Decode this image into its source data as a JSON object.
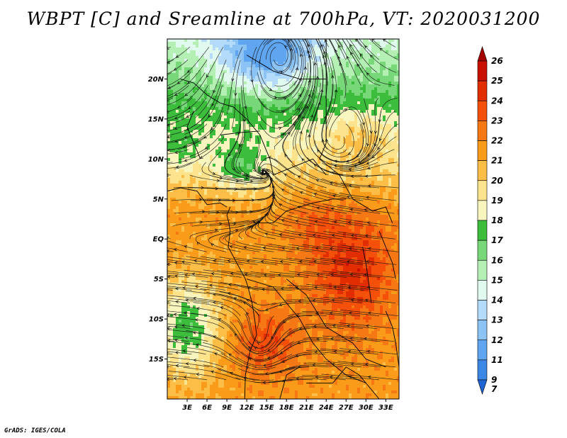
{
  "title": "WBPT [C] and Sreamline at 700hPa, VT: 2020031200",
  "credit": "GrADS: IGES/COLA",
  "map": {
    "lon_range": [
      0,
      35
    ],
    "lat_range": [
      -20,
      25
    ],
    "lat_ticks": [
      {
        "value": 20,
        "label": "20N"
      },
      {
        "value": 15,
        "label": "15N"
      },
      {
        "value": 10,
        "label": "10N"
      },
      {
        "value": 5,
        "label": "5N"
      },
      {
        "value": 0,
        "label": "EQ"
      },
      {
        "value": -5,
        "label": "5S"
      },
      {
        "value": -10,
        "label": "10S"
      },
      {
        "value": -15,
        "label": "15S"
      }
    ],
    "lon_ticks": [
      {
        "value": 3,
        "label": "3E"
      },
      {
        "value": 6,
        "label": "6E"
      },
      {
        "value": 9,
        "label": "9E"
      },
      {
        "value": 12,
        "label": "12E"
      },
      {
        "value": 15,
        "label": "15E"
      },
      {
        "value": 18,
        "label": "18E"
      },
      {
        "value": 21,
        "label": "21E"
      },
      {
        "value": 24,
        "label": "24E"
      },
      {
        "value": 27,
        "label": "27E"
      },
      {
        "value": 30,
        "label": "30E"
      },
      {
        "value": 33,
        "label": "33E"
      }
    ]
  },
  "colorbar": {
    "levels": [
      {
        "label": "26",
        "color": "#a50000"
      },
      {
        "label": "25",
        "color": "#c80f00"
      },
      {
        "label": "24",
        "color": "#e22d00"
      },
      {
        "label": "23",
        "color": "#f5500a"
      },
      {
        "label": "22",
        "color": "#f57814"
      },
      {
        "label": "21",
        "color": "#fa9b19"
      },
      {
        "label": "20",
        "color": "#fcbe46"
      },
      {
        "label": "19",
        "color": "#fde48c"
      },
      {
        "label": "18",
        "color": "#f8f5be"
      },
      {
        "label": "17",
        "color": "#3cbe3c"
      },
      {
        "label": "16",
        "color": "#78d778"
      },
      {
        "label": "15",
        "color": "#b4f0b4"
      },
      {
        "label": "14",
        "color": "#e1faf0"
      },
      {
        "label": "13",
        "color": "#b4dcfa"
      },
      {
        "label": "12",
        "color": "#8cc3f5"
      },
      {
        "label": "11",
        "color": "#5fa5f0"
      },
      {
        "label": "9",
        "color": "#3c87e6"
      },
      {
        "label": "7",
        "color": "#1e64d2"
      }
    ]
  }
}
